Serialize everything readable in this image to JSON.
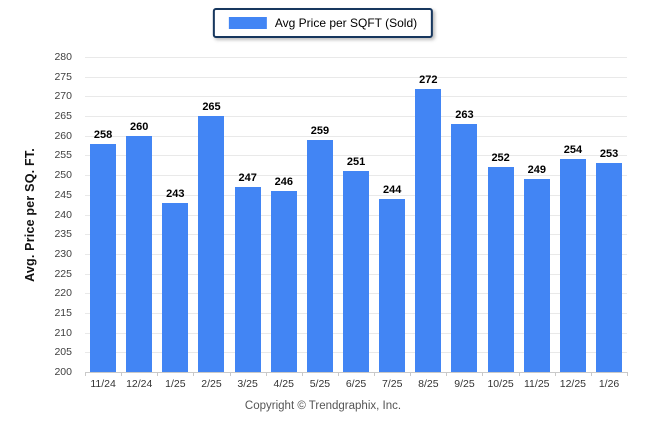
{
  "legend": {
    "label": "Avg Price per SQFT (Sold)"
  },
  "footer": {
    "copyright": "Copyright © Trendgraphix, Inc."
  },
  "colors": {
    "bar": "#4285f4",
    "grid": "#e9e9e9",
    "axis_line": "#c9c9c9",
    "legend_border": "#17375e",
    "value_label": "#000000",
    "tick_label": "#404040"
  },
  "chart_data": {
    "type": "bar",
    "title": "",
    "legend_entries": [
      "Avg Price per SQFT (Sold)"
    ],
    "legend_position": "top-center",
    "categories": [
      "11/24",
      "12/24",
      "1/25",
      "2/25",
      "3/25",
      "4/25",
      "5/25",
      "6/25",
      "7/25",
      "8/25",
      "9/25",
      "10/25",
      "11/25",
      "12/25",
      "1/26"
    ],
    "values": [
      258,
      260,
      243,
      265,
      247,
      246,
      259,
      251,
      244,
      272,
      263,
      252,
      249,
      254,
      253
    ],
    "xlabel": "",
    "ylabel": "Avg. Price per SQ. FT.",
    "ylim": [
      200,
      280
    ],
    "ytick_step": 5,
    "grid": true
  }
}
